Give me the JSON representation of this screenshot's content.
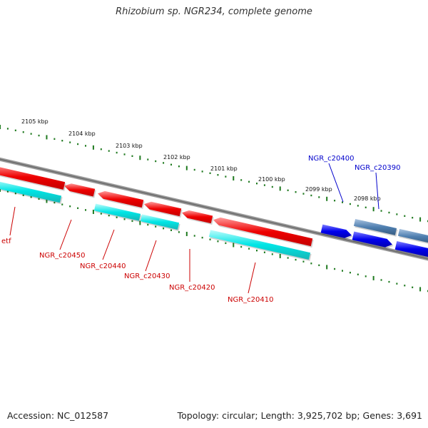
{
  "title": "Rhizobium sp. NGR234, complete genome",
  "footer": {
    "accession": "Accession: NC_012587",
    "topology": "Topology: circular; Length: 3,925,702 bp; Genes: 3,691"
  },
  "colors": {
    "background": "#ffffff",
    "backbone": "#808080",
    "tick": "#1f7a1f",
    "gene_reverse": "#ee0000",
    "cds_reverse": "#00e5e5",
    "gene_forward": "#0000ee",
    "cds_forward": "#4f7fb0",
    "label_reverse": "#cc0000",
    "label_forward": "#0000cc"
  },
  "coordinate_ticks": [
    "2105 kbp",
    "2104 kbp",
    "2103 kbp",
    "2102 kbp",
    "2101 kbp",
    "2100 kbp",
    "2099 kbp",
    "2098 kbp"
  ],
  "gene_labels": {
    "reverse": [
      "etf",
      "NGR_c20450",
      "NGR_c20440",
      "NGR_c20430",
      "NGR_c20420",
      "NGR_c20410"
    ],
    "forward": [
      "NGR_c20400",
      "NGR_c20390"
    ]
  }
}
